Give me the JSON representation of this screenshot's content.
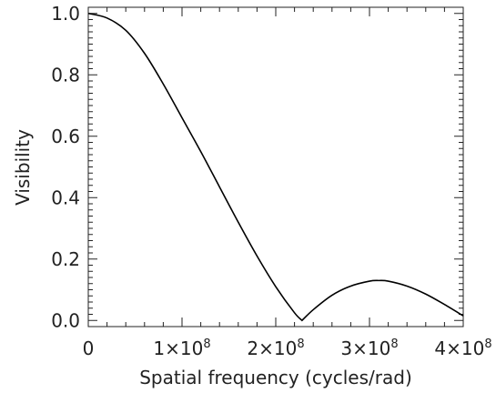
{
  "chart_data": {
    "type": "line",
    "title": "",
    "xlabel": "Spatial frequency (cycles/rad)",
    "ylabel": "Visibility",
    "xlim": [
      0,
      400000000
    ],
    "ylim": [
      -0.02,
      1.02
    ],
    "grid": false,
    "x_ticks": [
      {
        "value": 0,
        "mantissa": "0",
        "exponent": ""
      },
      {
        "value": 100000000,
        "mantissa": "1×10",
        "exponent": "8"
      },
      {
        "value": 200000000,
        "mantissa": "2×10",
        "exponent": "8"
      },
      {
        "value": 300000000,
        "mantissa": "3×10",
        "exponent": "8"
      },
      {
        "value": 400000000,
        "mantissa": "4×10",
        "exponent": "8"
      }
    ],
    "y_ticks": [
      {
        "value": 0.0,
        "label": "0.0"
      },
      {
        "value": 0.2,
        "label": "0.2"
      },
      {
        "value": 0.4,
        "label": "0.4"
      },
      {
        "value": 0.6,
        "label": "0.6"
      },
      {
        "value": 0.8,
        "label": "0.8"
      },
      {
        "value": 1.0,
        "label": "1.0"
      }
    ],
    "series": [
      {
        "color": "#000000",
        "x": [
          0,
          20000000,
          40000000,
          60000000,
          80000000,
          100000000,
          120000000,
          140000000,
          160000000,
          180000000,
          200000000,
          220000000,
          228000000,
          240000000,
          260000000,
          280000000,
          300000000,
          310000000,
          320000000,
          340000000,
          360000000,
          380000000,
          400000000
        ],
        "y": [
          1.0,
          0.985,
          0.945,
          0.87,
          0.77,
          0.66,
          0.55,
          0.435,
          0.32,
          0.21,
          0.11,
          0.025,
          0.0,
          0.035,
          0.082,
          0.112,
          0.128,
          0.13,
          0.128,
          0.112,
          0.086,
          0.052,
          0.015
        ]
      }
    ]
  }
}
